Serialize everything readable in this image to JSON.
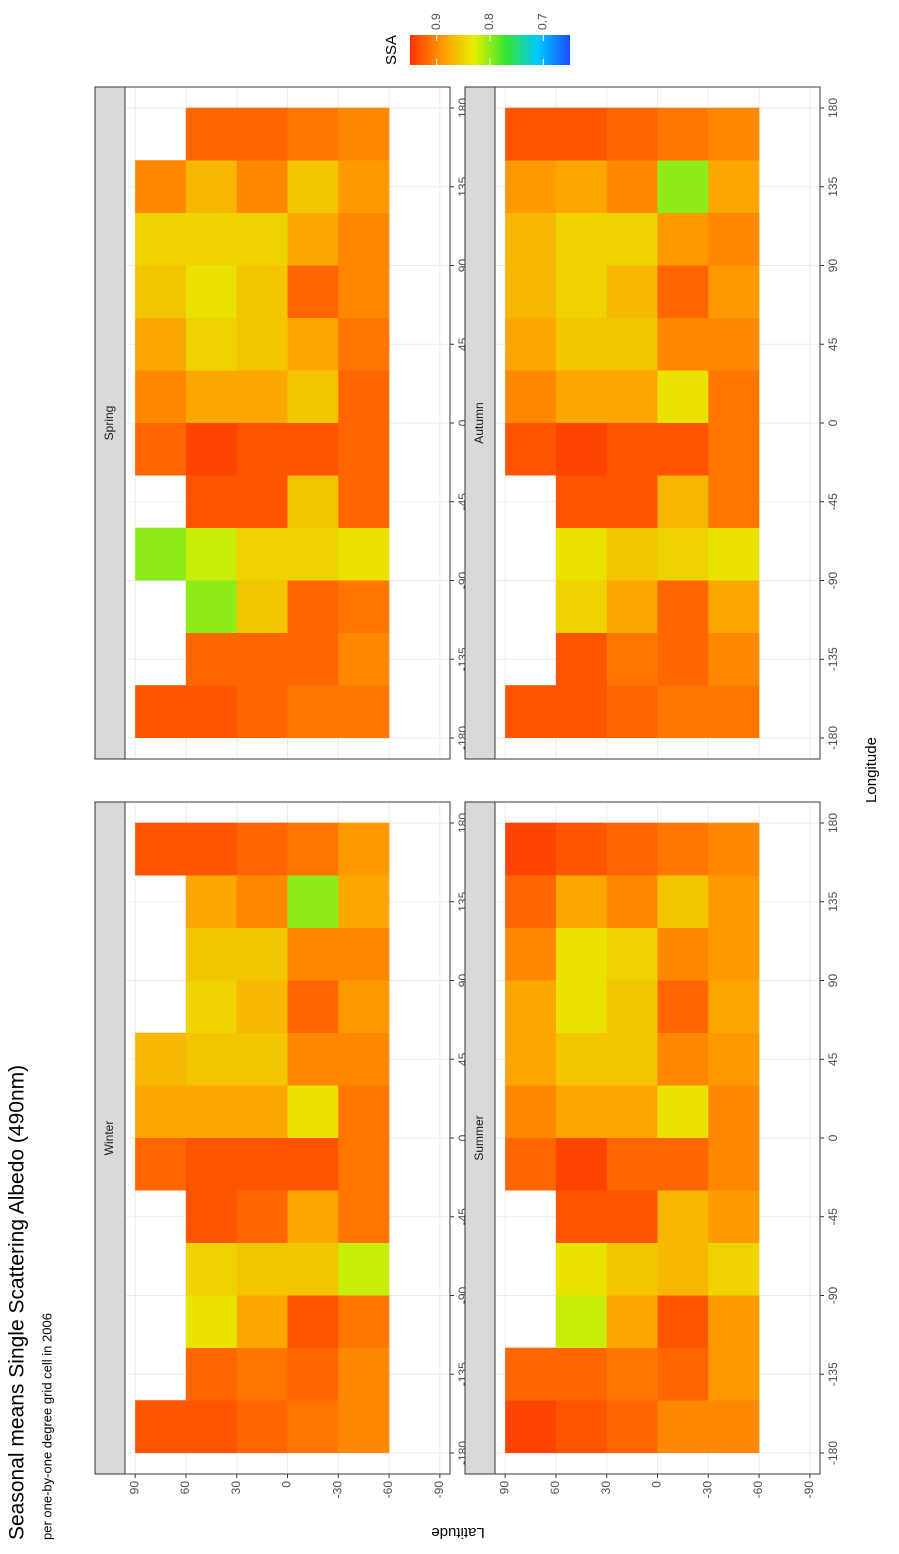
{
  "chart_data": {
    "type": "heatmap",
    "title": "Seasonal means Single Scattering Albedo (490nm)",
    "subtitle": "per one-by-one degree grid cell in 2006",
    "x_label": "Longitude",
    "y_label": "Latitude",
    "legend_title": "SSA",
    "lon_bins": [
      -180,
      -150,
      -120,
      -90,
      -60,
      -30,
      0,
      30,
      60,
      90,
      120,
      150,
      180
    ],
    "lat_bins": [
      90,
      60,
      30,
      0,
      -30,
      -60
    ],
    "xlim": [
      -192,
      192
    ],
    "ylim": [
      -96,
      96
    ],
    "xticks": [
      -180,
      -135,
      -90,
      -45,
      0,
      45,
      90,
      135,
      180
    ],
    "yticks": [
      90,
      60,
      30,
      0,
      -30,
      -60,
      -90
    ],
    "clim": [
      0.65,
      0.95
    ],
    "cticks": [
      0.9,
      0.8,
      0.7
    ],
    "colorscale": [
      "#1a4cff",
      "#00c8ff",
      "#33e633",
      "#e6f000",
      "#ff9900",
      "#ff3300"
    ],
    "grid": true,
    "facets": [
      {
        "name": "Winter",
        "values": [
          [
            0.93,
            null,
            null,
            null,
            null,
            0.92,
            0.88,
            0.87,
            null,
            null,
            null,
            0.93
          ],
          [
            0.93,
            0.92,
            0.84,
            0.85,
            0.93,
            0.93,
            0.88,
            0.86,
            0.85,
            0.86,
            0.88,
            0.93
          ],
          [
            0.92,
            0.91,
            0.88,
            0.86,
            0.92,
            0.93,
            0.88,
            0.86,
            0.87,
            0.86,
            0.9,
            0.92
          ],
          [
            0.91,
            0.92,
            0.93,
            0.86,
            0.88,
            0.93,
            0.84,
            0.9,
            0.92,
            0.9,
            0.8,
            0.91
          ],
          [
            0.9,
            0.9,
            0.91,
            0.82,
            0.91,
            0.91,
            0.91,
            0.9,
            0.89,
            0.9,
            0.88,
            0.89
          ]
        ]
      },
      {
        "name": "Spring",
        "values": [
          [
            0.93,
            null,
            null,
            0.8,
            null,
            0.92,
            0.9,
            0.88,
            0.86,
            0.85,
            0.9,
            null
          ],
          [
            0.93,
            0.92,
            0.8,
            0.82,
            0.93,
            0.94,
            0.88,
            0.85,
            0.84,
            0.85,
            0.87,
            0.92
          ],
          [
            0.92,
            0.92,
            0.86,
            0.85,
            0.93,
            0.93,
            0.88,
            0.86,
            0.86,
            0.85,
            0.9,
            0.92
          ],
          [
            0.91,
            0.92,
            0.92,
            0.85,
            0.86,
            0.93,
            0.86,
            0.88,
            0.92,
            0.88,
            0.86,
            0.91
          ],
          [
            0.91,
            0.9,
            0.91,
            0.84,
            0.92,
            0.92,
            0.92,
            0.91,
            0.9,
            0.9,
            0.89,
            0.9
          ]
        ]
      },
      {
        "name": "Summer",
        "values": [
          [
            0.94,
            0.92,
            null,
            null,
            null,
            0.92,
            0.9,
            0.88,
            0.88,
            0.9,
            0.92,
            0.94
          ],
          [
            0.93,
            0.92,
            0.82,
            0.84,
            0.93,
            0.94,
            0.88,
            0.86,
            0.84,
            0.84,
            0.88,
            0.93
          ],
          [
            0.92,
            0.91,
            0.88,
            0.86,
            0.93,
            0.92,
            0.88,
            0.86,
            0.86,
            0.85,
            0.9,
            0.92
          ],
          [
            0.9,
            0.92,
            0.93,
            0.87,
            0.87,
            0.92,
            0.84,
            0.9,
            0.92,
            0.9,
            0.86,
            0.91
          ],
          [
            0.9,
            0.89,
            0.89,
            0.85,
            0.89,
            0.9,
            0.9,
            0.89,
            0.88,
            0.89,
            0.89,
            0.9
          ]
        ]
      },
      {
        "name": "Autumn",
        "values": [
          [
            0.93,
            null,
            null,
            null,
            null,
            0.93,
            0.9,
            0.88,
            0.87,
            0.87,
            0.89,
            0.93
          ],
          [
            0.93,
            0.93,
            0.85,
            0.84,
            0.93,
            0.94,
            0.88,
            0.86,
            0.85,
            0.85,
            0.88,
            0.93
          ],
          [
            0.92,
            0.91,
            0.88,
            0.86,
            0.93,
            0.93,
            0.88,
            0.86,
            0.87,
            0.85,
            0.9,
            0.92
          ],
          [
            0.91,
            0.92,
            0.92,
            0.85,
            0.87,
            0.93,
            0.84,
            0.9,
            0.92,
            0.89,
            0.8,
            0.91
          ],
          [
            0.91,
            0.9,
            0.88,
            0.84,
            0.91,
            0.91,
            0.91,
            0.9,
            0.89,
            0.9,
            0.88,
            0.9
          ]
        ]
      }
    ]
  }
}
